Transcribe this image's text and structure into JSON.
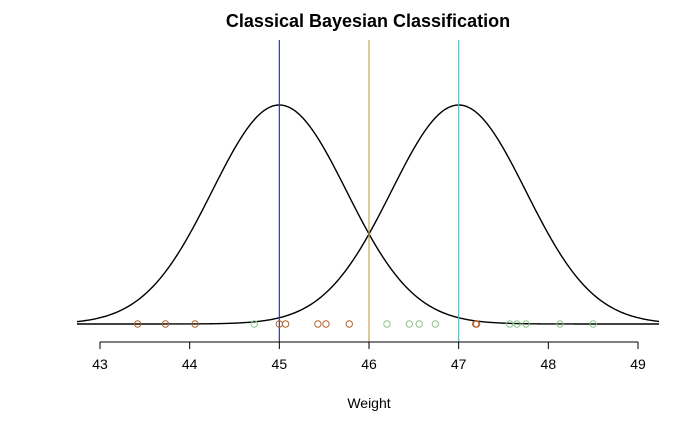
{
  "chart_data": {
    "type": "line",
    "title": "Classical Bayesian Classification",
    "xlabel": "Weight",
    "ylabel": "",
    "xlim": [
      43,
      49
    ],
    "x_ticks": [
      "43",
      "44",
      "45",
      "46",
      "47",
      "48",
      "49"
    ],
    "grid": false,
    "curves": [
      {
        "kind": "normal-density",
        "mean": 45,
        "sd": 0.75,
        "color": "#000000"
      },
      {
        "kind": "normal-density",
        "mean": 47,
        "sd": 0.75,
        "color": "#000000"
      }
    ],
    "vertical_lines": [
      {
        "x": 45,
        "color": "#2f3a8a"
      },
      {
        "x": 46,
        "color": "#c9a35a"
      },
      {
        "x": 47,
        "color": "#3fc4c4"
      }
    ],
    "observations": [
      {
        "group": "class-1",
        "color": "#b5652a",
        "x": [
          43.42,
          43.73,
          44.06,
          45.0,
          45.07,
          45.43,
          45.52,
          45.78,
          47.19,
          47.2
        ]
      },
      {
        "group": "class-2",
        "color": "#8cc68c",
        "x": [
          44.72,
          46.2,
          46.45,
          46.56,
          46.74,
          47.57,
          47.65,
          47.75,
          48.13,
          48.5
        ]
      }
    ]
  }
}
